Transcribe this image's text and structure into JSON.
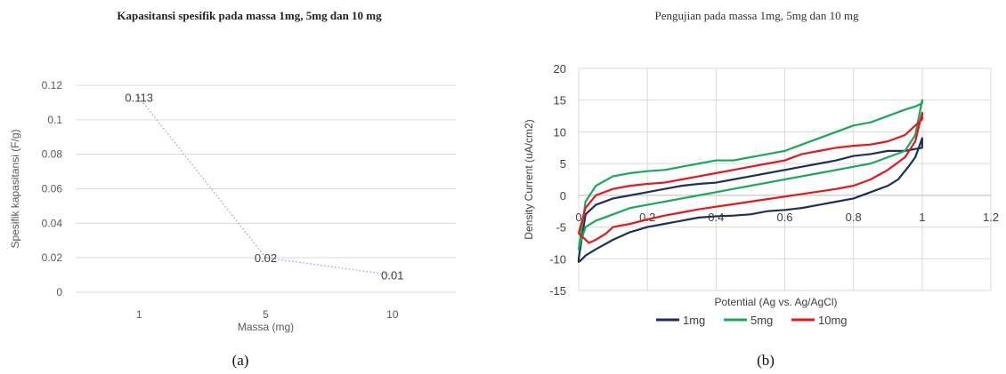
{
  "captions": {
    "a": "(a)",
    "b": "(b)"
  },
  "chart_data": [
    {
      "id": "a",
      "type": "line",
      "title": "Kapasitansi spesifik pada massa 1mg, 5mg dan 10 mg",
      "xlabel": "Massa (mg)",
      "ylabel": "Spesifik kapasitansi (F/g)",
      "categories": [
        "1",
        "5",
        "10"
      ],
      "values": [
        0.113,
        0.02,
        0.01
      ],
      "data_labels": [
        "0.113",
        "0.02",
        "0.01"
      ],
      "yticks": [
        "0",
        "0.02",
        "0.04",
        "0.06",
        "0.08",
        "0.1",
        "0.12"
      ],
      "ylim": [
        0,
        0.12
      ],
      "grid": "horizontal",
      "line_color": "#8fa9d4"
    },
    {
      "id": "b",
      "type": "line",
      "title": "Pengujian pada massa 1mg, 5mg dan 10 mg",
      "xlabel": "Potential (Ag vs. Ag/AgCl)",
      "ylabel": "Density Current (uA/cm2)",
      "xlim": [
        0,
        1.2
      ],
      "ylim": [
        -15,
        20
      ],
      "xticks": [
        "0",
        "0.2",
        "0.4",
        "0.6",
        "0.8",
        "1",
        "1.2"
      ],
      "yticks": [
        "-15",
        "-10",
        "-5",
        "0",
        "5",
        "10",
        "15",
        "20"
      ],
      "grid": "both",
      "legend": "bottom",
      "series": [
        {
          "name": "1mg",
          "color": "#1f2f5c",
          "x": [
            0,
            0.005,
            0.02,
            0.05,
            0.1,
            0.15,
            0.2,
            0.25,
            0.3,
            0.35,
            0.4,
            0.45,
            0.5,
            0.55,
            0.6,
            0.65,
            0.7,
            0.75,
            0.8,
            0.85,
            0.9,
            0.93,
            0.96,
            0.98,
            1.0,
            1.0,
            0.98,
            0.95,
            0.9,
            0.85,
            0.8,
            0.75,
            0.7,
            0.65,
            0.6,
            0.55,
            0.5,
            0.45,
            0.4,
            0.35,
            0.3,
            0.25,
            0.2,
            0.15,
            0.1,
            0.05,
            0.02,
            0.0
          ],
          "y": [
            -10.5,
            -10.3,
            -9.5,
            -8.5,
            -7.0,
            -5.8,
            -5.0,
            -4.5,
            -4.0,
            -3.5,
            -3.3,
            -3.2,
            -3.0,
            -2.5,
            -2.3,
            -2.0,
            -1.5,
            -1.0,
            -0.5,
            0.5,
            1.5,
            2.5,
            4.5,
            6.0,
            9.0,
            7.5,
            7.3,
            7.0,
            7.0,
            6.5,
            6.2,
            5.5,
            5.0,
            4.5,
            4.0,
            3.5,
            3.0,
            2.5,
            2.0,
            1.8,
            1.5,
            1.0,
            0.5,
            0.0,
            -0.5,
            -1.5,
            -3.0,
            -10.0
          ]
        },
        {
          "name": "5mg",
          "color": "#1aa85a",
          "x": [
            0,
            0.005,
            0.02,
            0.05,
            0.1,
            0.15,
            0.2,
            0.25,
            0.3,
            0.35,
            0.4,
            0.45,
            0.5,
            0.55,
            0.6,
            0.65,
            0.7,
            0.75,
            0.8,
            0.85,
            0.9,
            0.95,
            0.98,
            1.0,
            1.0,
            0.98,
            0.95,
            0.9,
            0.85,
            0.8,
            0.75,
            0.7,
            0.65,
            0.6,
            0.55,
            0.5,
            0.45,
            0.4,
            0.35,
            0.3,
            0.25,
            0.2,
            0.15,
            0.1,
            0.05,
            0.02,
            0.0
          ],
          "y": [
            -8.5,
            -7.5,
            -5.0,
            -4.0,
            -3.0,
            -2.0,
            -1.5,
            -1.0,
            -0.5,
            0.0,
            0.5,
            1.0,
            1.5,
            2.0,
            2.5,
            3.0,
            3.5,
            4.0,
            4.5,
            5.0,
            6.0,
            7.0,
            9.5,
            15.0,
            14.5,
            14.0,
            13.5,
            12.5,
            11.5,
            11.0,
            10.0,
            9.0,
            8.0,
            7.0,
            6.5,
            6.0,
            5.5,
            5.5,
            5.0,
            4.5,
            4.0,
            3.8,
            3.5,
            3.0,
            1.5,
            -1.0,
            -8.5
          ]
        },
        {
          "name": "10mg",
          "color": "#e8161c",
          "x": [
            0,
            0.01,
            0.03,
            0.05,
            0.08,
            0.1,
            0.15,
            0.2,
            0.25,
            0.3,
            0.35,
            0.4,
            0.45,
            0.5,
            0.55,
            0.6,
            0.65,
            0.7,
            0.75,
            0.8,
            0.85,
            0.9,
            0.95,
            0.98,
            1.0,
            1.0,
            0.98,
            0.95,
            0.9,
            0.85,
            0.8,
            0.75,
            0.7,
            0.65,
            0.6,
            0.55,
            0.5,
            0.45,
            0.4,
            0.35,
            0.3,
            0.25,
            0.2,
            0.15,
            0.1,
            0.05,
            0.02,
            0.0
          ],
          "y": [
            -6.0,
            -6.5,
            -7.5,
            -7.0,
            -6.0,
            -5.0,
            -4.5,
            -3.8,
            -3.2,
            -2.7,
            -2.2,
            -1.8,
            -1.4,
            -1.0,
            -0.6,
            -0.2,
            0.2,
            0.6,
            1.0,
            1.5,
            2.5,
            4.0,
            6.0,
            8.5,
            13.0,
            12.0,
            11.0,
            9.5,
            8.5,
            8.0,
            7.8,
            7.5,
            7.0,
            6.5,
            5.5,
            5.0,
            4.5,
            4.0,
            3.5,
            3.0,
            2.5,
            2.0,
            1.8,
            1.5,
            1.0,
            0.0,
            -2.0,
            -6.0
          ]
        }
      ]
    }
  ]
}
